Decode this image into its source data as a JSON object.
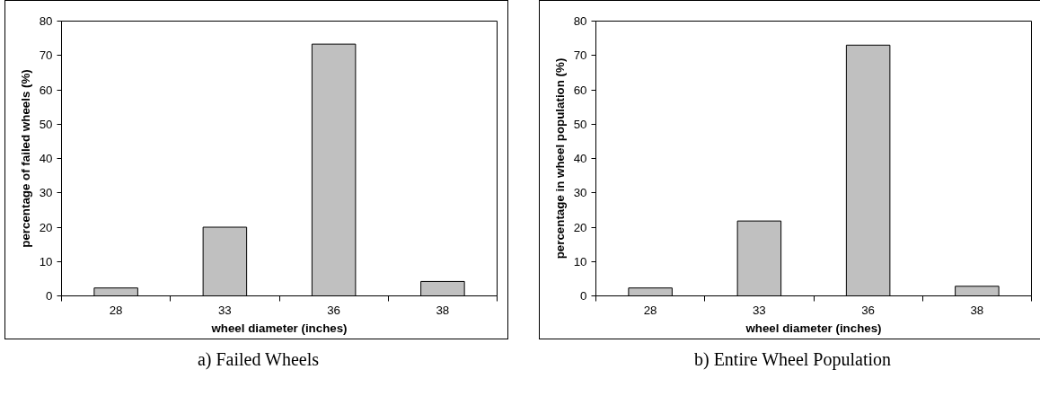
{
  "chart_data": [
    {
      "type": "bar",
      "categories": [
        "28",
        "33",
        "36",
        "38"
      ],
      "values": [
        2.3,
        20,
        73.3,
        4.2
      ],
      "color": "#c0c0c0",
      "xlabel": "wheel diameter (inches)",
      "ylabel": "percentage of failed wheels (%)",
      "ylim": [
        0,
        80
      ],
      "yticks": [
        0,
        10,
        20,
        30,
        40,
        50,
        60,
        70,
        80
      ],
      "annotations": [
        "a) Failed Wheels"
      ]
    },
    {
      "type": "bar",
      "categories": [
        "28",
        "33",
        "36",
        "38"
      ],
      "values": [
        2.3,
        21.8,
        73.0,
        2.8
      ],
      "color": "#c0c0c0",
      "xlabel": "wheel diameter (inches)",
      "ylabel": "percentage in wheel population (%)",
      "ylim": [
        0,
        80
      ],
      "yticks": [
        0,
        10,
        20,
        30,
        40,
        50,
        60,
        70,
        80
      ],
      "annotations": [
        "b) Entire Wheel Population"
      ]
    }
  ]
}
